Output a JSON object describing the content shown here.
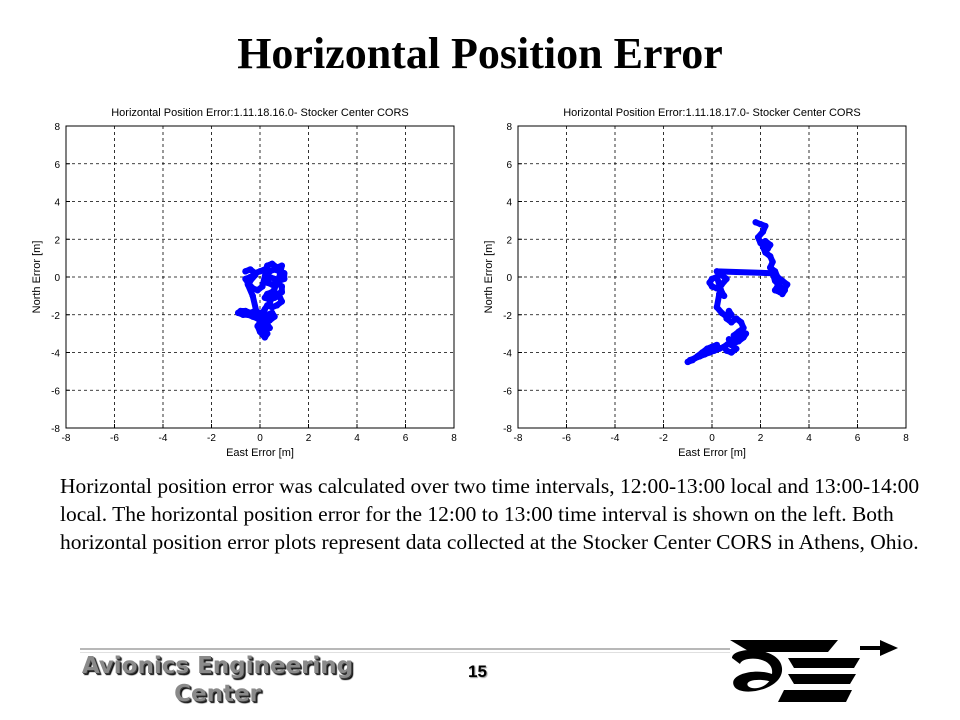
{
  "slide": {
    "title": "Horizontal Position Error",
    "body": "Horizontal position error was calculated over two time intervals, 12:00-13:00 local and 13:00-14:00 local. The horizontal position error for the 12:00 to 13:00 time interval is shown on the left. Both horizontal position error plots represent data collected at the Stocker Center CORS in Athens, Ohio.",
    "page_number": "15",
    "footer_logo_line1": "Avionics Engineering",
    "footer_logo_line2": "Center"
  },
  "colors": {
    "series": "#0000ff",
    "grid": "#000000",
    "text": "#000000"
  },
  "chart_data": [
    {
      "type": "scatter",
      "title": "Horizontal Position Error:1.11.18.16.0- Stocker Center CORS",
      "xlabel": "East Error [m]",
      "ylabel": "North Error [m]",
      "xlim": [
        -8,
        8
      ],
      "ylim": [
        -8,
        8
      ],
      "xticks": [
        -8,
        -6,
        -4,
        -2,
        0,
        2,
        4,
        6,
        8
      ],
      "yticks": [
        -8,
        -6,
        -4,
        -2,
        0,
        2,
        4,
        6,
        8
      ],
      "grid": true,
      "series": [
        {
          "color": "#0000ff",
          "x": [
            -0.6,
            -0.4,
            -0.2,
            0.0,
            0.2,
            0.4,
            0.6,
            0.8,
            1.0,
            1.0,
            0.8,
            0.6,
            0.4,
            0.3,
            0.5,
            0.7,
            0.9,
            0.9,
            0.7,
            0.5,
            0.3,
            0.2,
            0.4,
            0.6,
            0.8,
            0.9,
            0.7,
            0.5,
            0.3,
            0.2,
            0.1,
            0.3,
            0.5,
            0.6,
            0.4,
            0.2,
            0.0,
            -0.2,
            -0.4,
            -0.6,
            -0.8,
            -0.9,
            -0.7,
            -0.5,
            -0.3,
            -0.1,
            0.1,
            0.3,
            0.4,
            0.2,
            0.0,
            0.1,
            0.3,
            0.2,
            0.0,
            -0.1,
            0.0,
            0.1,
            -0.1,
            -0.3,
            -0.5,
            -0.4,
            -0.2,
            -0.4,
            -0.6,
            -0.5,
            -0.3,
            -0.1,
            0.1,
            0.3,
            0.5,
            0.7,
            0.9,
            0.8,
            0.6,
            0.4
          ],
          "y": [
            0.3,
            0.4,
            0.2,
            0.3,
            0.4,
            0.3,
            0.4,
            0.3,
            0.2,
            -0.1,
            -0.2,
            -0.1,
            0.0,
            -0.3,
            -0.4,
            -0.3,
            -0.5,
            -0.8,
            -0.9,
            -0.8,
            -0.9,
            -1.1,
            -1.2,
            -1.1,
            -1.0,
            -1.3,
            -1.5,
            -1.6,
            -1.5,
            -1.7,
            -1.9,
            -2.0,
            -1.9,
            -2.1,
            -2.3,
            -2.2,
            -1.9,
            -1.8,
            -1.9,
            -1.8,
            -1.8,
            -1.9,
            -2.0,
            -2.0,
            -2.1,
            -2.2,
            -2.4,
            -2.5,
            -2.7,
            -2.8,
            -2.6,
            -2.9,
            -3.0,
            -3.2,
            -2.9,
            -2.6,
            -2.4,
            -2.3,
            -2.1,
            -1.0,
            -0.4,
            -0.2,
            0.1,
            0.0,
            -0.1,
            -0.3,
            -0.6,
            -0.7,
            -0.5,
            0.6,
            0.7,
            0.5,
            0.6,
            0.0,
            -0.6,
            -1.4
          ]
        }
      ]
    },
    {
      "type": "scatter",
      "title": "Horizontal Position Error:1.11.18.17.0- Stocker Center CORS",
      "xlabel": "East Error [m]",
      "ylabel": "North Error [m]",
      "xlim": [
        -8,
        8
      ],
      "ylim": [
        -8,
        8
      ],
      "xticks": [
        -8,
        -6,
        -4,
        -2,
        0,
        2,
        4,
        6,
        8
      ],
      "yticks": [
        -8,
        -6,
        -4,
        -2,
        0,
        2,
        4,
        6,
        8
      ],
      "grid": true,
      "series": [
        {
          "color": "#0000ff",
          "x": [
            1.8,
            2.0,
            2.2,
            2.1,
            1.9,
            2.0,
            2.2,
            2.4,
            2.3,
            2.1,
            2.2,
            2.4,
            2.5,
            2.4,
            2.6,
            2.7,
            2.9,
            3.1,
            3.0,
            2.8,
            2.6,
            2.7,
            2.9,
            3.0,
            2.8,
            2.6,
            2.5,
            0.2,
            0.4,
            0.6,
            0.4,
            0.2,
            0.0,
            -0.1,
            0.0,
            0.2,
            0.4,
            0.5,
            0.3,
            0.2,
            0.4,
            0.6,
            0.8,
            0.7,
            0.6,
            0.8,
            1.0,
            1.2,
            1.3,
            1.1,
            0.9,
            1.0,
            1.2,
            1.4,
            1.3,
            1.1,
            0.9,
            0.7,
            0.8,
            1.0,
            0.8,
            0.6,
            0.5,
            0.7,
            0.5,
            0.3,
            0.1,
            -0.1,
            -0.3,
            -0.5,
            -0.7,
            -0.9,
            -1.0,
            -0.8,
            -0.6,
            -0.4,
            -0.2,
            0.0,
            0.2
          ],
          "y": [
            2.9,
            2.8,
            2.7,
            2.4,
            2.1,
            1.8,
            1.9,
            1.7,
            1.5,
            1.6,
            1.3,
            1.1,
            0.8,
            0.5,
            0.3,
            0.0,
            -0.2,
            -0.4,
            -0.6,
            -0.8,
            -0.7,
            -0.5,
            -0.9,
            -0.7,
            -0.5,
            -0.2,
            0.2,
            0.3,
            0.1,
            -0.1,
            -0.4,
            -0.6,
            -0.5,
            -0.3,
            -0.1,
            0.0,
            -0.8,
            -1.0,
            -0.9,
            -1.6,
            -1.9,
            -2.1,
            -2.0,
            -1.8,
            -2.2,
            -2.4,
            -2.2,
            -2.4,
            -2.7,
            -2.9,
            -3.1,
            -3.3,
            -3.1,
            -3.0,
            -3.2,
            -3.4,
            -3.5,
            -3.3,
            -3.6,
            -3.8,
            -4.0,
            -3.9,
            -3.7,
            -3.5,
            -3.7,
            -3.8,
            -3.9,
            -4.0,
            -4.1,
            -4.2,
            -4.3,
            -4.4,
            -4.5,
            -4.4,
            -4.2,
            -4.0,
            -3.8,
            -3.7,
            -3.6
          ]
        }
      ]
    }
  ]
}
